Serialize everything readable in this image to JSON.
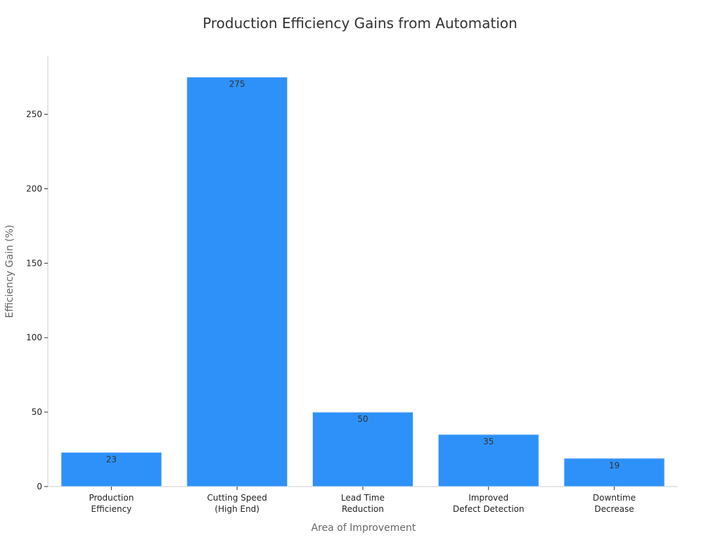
{
  "chart_data": {
    "type": "bar",
    "title": "Production Efficiency Gains from Automation",
    "xlabel": "Area of Improvement",
    "ylabel": "Efficiency Gain (%)",
    "categories": [
      [
        "Production",
        "Efficiency"
      ],
      [
        "Cutting Speed",
        "(High End)"
      ],
      [
        "Lead Time",
        "Reduction"
      ],
      [
        "Improved",
        "Defect Detection"
      ],
      [
        "Downtime",
        "Decrease"
      ]
    ],
    "values": [
      23,
      275,
      50,
      35,
      19
    ],
    "ylim": [
      0,
      289
    ],
    "yticks": [
      0,
      50,
      100,
      150,
      200,
      250
    ],
    "grid": false,
    "bar_color": "#2E91F9",
    "bar_edge_color": "#dbe9fb"
  }
}
